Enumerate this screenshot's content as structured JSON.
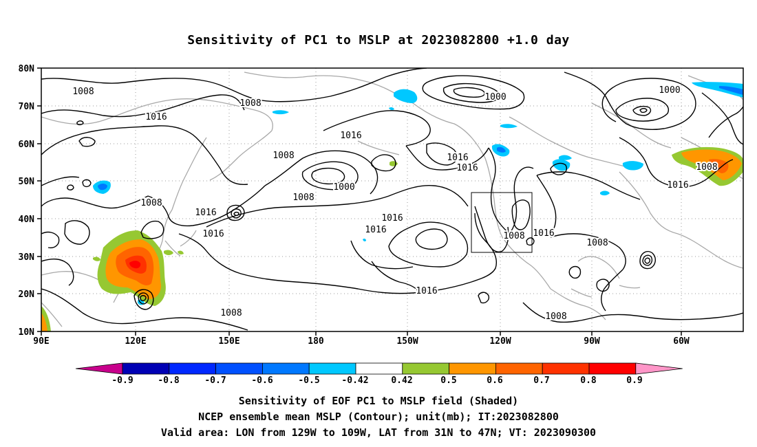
{
  "title": "Sensitivity of PC1 to MSLP at 2023082800 +1.0 day",
  "lat_labels": [
    "80N",
    "70N",
    "60N",
    "50N",
    "40N",
    "30N",
    "20N",
    "10N"
  ],
  "lon_labels": [
    "90E",
    "120E",
    "150E",
    "180",
    "150W",
    "120W",
    "90W",
    "60W"
  ],
  "contour_labels": [
    {
      "text": "1008"
    },
    {
      "text": "1008"
    },
    {
      "text": "1000"
    },
    {
      "text": "1000"
    },
    {
      "text": "1016"
    },
    {
      "text": "1016"
    },
    {
      "text": "1008"
    },
    {
      "text": "1000"
    },
    {
      "text": "1008"
    },
    {
      "text": "1016"
    },
    {
      "text": "1016"
    },
    {
      "text": "1008"
    },
    {
      "text": "1016"
    },
    {
      "text": "1016"
    },
    {
      "text": "1016"
    },
    {
      "text": "1016"
    },
    {
      "text": "1016"
    },
    {
      "text": "1008"
    },
    {
      "text": "1016"
    },
    {
      "text": "1008"
    },
    {
      "text": "1016"
    },
    {
      "text": "1008"
    },
    {
      "text": "1008"
    },
    {
      "text": "1008"
    }
  ],
  "colorbar": {
    "ticks": [
      "-0.9",
      "-0.8",
      "-0.7",
      "-0.6",
      "-0.5",
      "-0.42",
      "0.42",
      "0.5",
      "0.6",
      "0.7",
      "0.8",
      "0.9"
    ],
    "colors": [
      "#c8008c",
      "#0000b4",
      "#0028ff",
      "#0050ff",
      "#0078ff",
      "#00c8ff",
      "#ffffff",
      "#96c832",
      "#ff9600",
      "#ff6400",
      "#ff3200",
      "#ff0000",
      "#ff96c8"
    ]
  },
  "captions": [
    "Sensitivity of EOF PC1 to MSLP field (Shaded)",
    "NCEP ensemble mean MSLP (Contour); unit(mb); IT:2023082800",
    "Valid area: LON from 129W to 109W, LAT from 31N to 47N; VT: 2023090300"
  ]
}
